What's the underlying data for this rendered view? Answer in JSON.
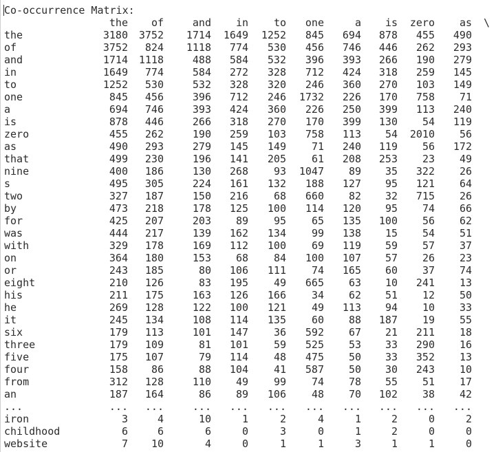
{
  "title": "Co-occurrence Matrix:",
  "continuation": "\\",
  "columns": [
    "the",
    "of",
    "and",
    "in",
    "to",
    "one",
    "a",
    "is",
    "zero",
    "as"
  ],
  "rows": [
    {
      "label": "the",
      "values": [
        "3180",
        "3752",
        "1714",
        "1649",
        "1252",
        "845",
        "694",
        "878",
        "455",
        "490"
      ]
    },
    {
      "label": "of",
      "values": [
        "3752",
        "824",
        "1118",
        "774",
        "530",
        "456",
        "746",
        "446",
        "262",
        "293"
      ]
    },
    {
      "label": "and",
      "values": [
        "1714",
        "1118",
        "488",
        "584",
        "532",
        "396",
        "393",
        "266",
        "190",
        "279"
      ]
    },
    {
      "label": "in",
      "values": [
        "1649",
        "774",
        "584",
        "272",
        "328",
        "712",
        "424",
        "318",
        "259",
        "145"
      ]
    },
    {
      "label": "to",
      "values": [
        "1252",
        "530",
        "532",
        "328",
        "320",
        "246",
        "360",
        "270",
        "103",
        "149"
      ]
    },
    {
      "label": "one",
      "values": [
        "845",
        "456",
        "396",
        "712",
        "246",
        "1732",
        "226",
        "170",
        "758",
        "71"
      ]
    },
    {
      "label": "a",
      "values": [
        "694",
        "746",
        "393",
        "424",
        "360",
        "226",
        "250",
        "399",
        "113",
        "240"
      ]
    },
    {
      "label": "is",
      "values": [
        "878",
        "446",
        "266",
        "318",
        "270",
        "170",
        "399",
        "130",
        "54",
        "119"
      ]
    },
    {
      "label": "zero",
      "values": [
        "455",
        "262",
        "190",
        "259",
        "103",
        "758",
        "113",
        "54",
        "2010",
        "56"
      ]
    },
    {
      "label": "as",
      "values": [
        "490",
        "293",
        "279",
        "145",
        "149",
        "71",
        "240",
        "119",
        "56",
        "172"
      ]
    },
    {
      "label": "that",
      "values": [
        "499",
        "230",
        "196",
        "141",
        "205",
        "61",
        "208",
        "253",
        "23",
        "49"
      ]
    },
    {
      "label": "nine",
      "values": [
        "400",
        "186",
        "130",
        "268",
        "93",
        "1047",
        "89",
        "35",
        "322",
        "26"
      ]
    },
    {
      "label": "s",
      "values": [
        "495",
        "305",
        "224",
        "161",
        "132",
        "188",
        "127",
        "95",
        "121",
        "64"
      ]
    },
    {
      "label": "two",
      "values": [
        "327",
        "187",
        "150",
        "216",
        "68",
        "660",
        "82",
        "32",
        "715",
        "26"
      ]
    },
    {
      "label": "by",
      "values": [
        "473",
        "218",
        "178",
        "125",
        "100",
        "114",
        "120",
        "95",
        "74",
        "66"
      ]
    },
    {
      "label": "for",
      "values": [
        "425",
        "207",
        "203",
        "89",
        "95",
        "65",
        "135",
        "100",
        "56",
        "62"
      ]
    },
    {
      "label": "was",
      "values": [
        "444",
        "217",
        "139",
        "162",
        "134",
        "99",
        "138",
        "15",
        "54",
        "51"
      ]
    },
    {
      "label": "with",
      "values": [
        "329",
        "178",
        "169",
        "112",
        "100",
        "69",
        "119",
        "59",
        "57",
        "37"
      ]
    },
    {
      "label": "on",
      "values": [
        "364",
        "180",
        "153",
        "68",
        "84",
        "100",
        "107",
        "57",
        "26",
        "23"
      ]
    },
    {
      "label": "or",
      "values": [
        "243",
        "185",
        "80",
        "106",
        "111",
        "74",
        "165",
        "60",
        "37",
        "74"
      ]
    },
    {
      "label": "eight",
      "values": [
        "210",
        "126",
        "83",
        "195",
        "49",
        "665",
        "63",
        "10",
        "241",
        "13"
      ]
    },
    {
      "label": "his",
      "values": [
        "211",
        "175",
        "163",
        "126",
        "166",
        "34",
        "62",
        "51",
        "12",
        "50"
      ]
    },
    {
      "label": "he",
      "values": [
        "269",
        "128",
        "122",
        "100",
        "121",
        "49",
        "113",
        "94",
        "10",
        "33"
      ]
    },
    {
      "label": "it",
      "values": [
        "245",
        "134",
        "108",
        "114",
        "135",
        "60",
        "88",
        "187",
        "19",
        "55"
      ]
    },
    {
      "label": "six",
      "values": [
        "179",
        "113",
        "101",
        "147",
        "36",
        "592",
        "67",
        "21",
        "211",
        "18"
      ]
    },
    {
      "label": "three",
      "values": [
        "179",
        "109",
        "81",
        "101",
        "59",
        "525",
        "53",
        "33",
        "290",
        "16"
      ]
    },
    {
      "label": "five",
      "values": [
        "175",
        "107",
        "79",
        "114",
        "48",
        "475",
        "50",
        "33",
        "352",
        "13"
      ]
    },
    {
      "label": "four",
      "values": [
        "158",
        "86",
        "88",
        "104",
        "41",
        "587",
        "50",
        "30",
        "243",
        "10"
      ]
    },
    {
      "label": "from",
      "values": [
        "312",
        "128",
        "110",
        "49",
        "99",
        "74",
        "78",
        "55",
        "51",
        "17"
      ]
    },
    {
      "label": "an",
      "values": [
        "187",
        "164",
        "86",
        "89",
        "106",
        "48",
        "70",
        "102",
        "38",
        "42"
      ]
    },
    {
      "label": "...",
      "values": [
        "...",
        "...",
        "...",
        "...",
        "...",
        "...",
        "...",
        "...",
        "...",
        "..."
      ]
    },
    {
      "label": "iron",
      "values": [
        "3",
        "4",
        "10",
        "1",
        "2",
        "4",
        "1",
        "2",
        "0",
        "2"
      ]
    },
    {
      "label": "childhood",
      "values": [
        "6",
        "6",
        "6",
        "0",
        "3",
        "0",
        "1",
        "2",
        "0",
        "0"
      ]
    },
    {
      "label": "website",
      "values": [
        "7",
        "10",
        "4",
        "0",
        "1",
        "1",
        "3",
        "1",
        "1",
        "0"
      ]
    }
  ]
}
